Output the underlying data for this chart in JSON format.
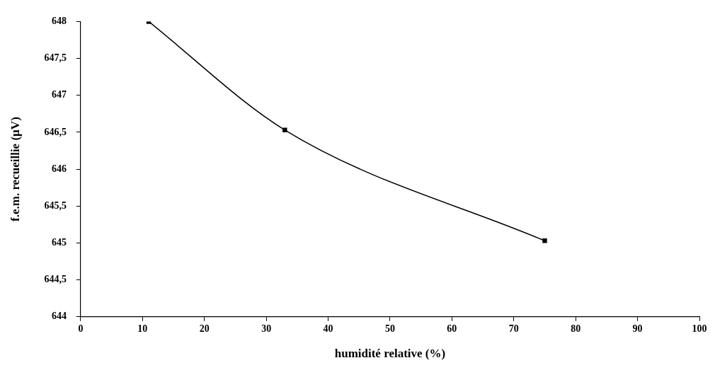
{
  "chart_data": {
    "type": "line",
    "xlabel": "humidité relative (%)",
    "ylabel": "f.e.m. recueillie (µV)",
    "x": [
      11,
      33,
      75
    ],
    "series": [
      {
        "color": "#000000",
        "values": [
          648,
          646.53,
          645.03
        ]
      }
    ],
    "xlim": [
      0,
      100
    ],
    "xticks": [
      0,
      10,
      20,
      30,
      40,
      50,
      60,
      70,
      80,
      90,
      100
    ],
    "ylim": [
      644,
      648
    ],
    "yticks": [
      644,
      {
        "value": 644.5,
        "label": "644,5"
      },
      645,
      {
        "value": 645.5,
        "label": "645,5"
      },
      646,
      {
        "value": 646.5,
        "label": "646,5"
      },
      647,
      {
        "value": 647.5,
        "label": "647,5"
      },
      648
    ],
    "grid": false,
    "legend": false,
    "marker": "square",
    "line_style": "solid"
  }
}
